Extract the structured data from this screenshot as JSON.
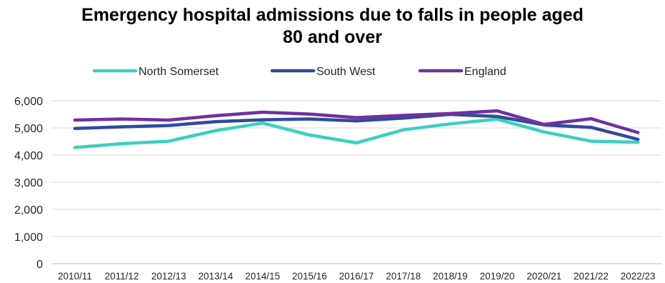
{
  "chart_data": {
    "type": "line",
    "title": [
      "Emergency hospital admissions due to falls in people aged",
      "80 and over"
    ],
    "categories": [
      "2010/11",
      "2011/12",
      "2012/13",
      "2013/14",
      "2014/15",
      "2015/16",
      "2016/17",
      "2017/18",
      "2018/19",
      "2019/20",
      "2020/21",
      "2021/22",
      "2022/23"
    ],
    "ylim": [
      0,
      6000
    ],
    "yticks": [
      "0",
      "1,000",
      "2,000",
      "3,000",
      "4,000",
      "5,000",
      "6,000"
    ],
    "ytick_values": [
      0,
      1000,
      2000,
      3000,
      4000,
      5000,
      6000
    ],
    "grid": true,
    "legend_position": "top",
    "series": [
      {
        "name": "North Somerset",
        "color": "#3ccfc0",
        "values": [
          4280,
          4420,
          4510,
          4900,
          5180,
          4740,
          4450,
          4930,
          5150,
          5320,
          4850,
          4510,
          4470
        ]
      },
      {
        "name": "South West",
        "color": "#2f4c9c",
        "values": [
          4980,
          5040,
          5090,
          5230,
          5300,
          5330,
          5260,
          5360,
          5500,
          5420,
          5110,
          5020,
          4580
        ]
      },
      {
        "name": "England",
        "color": "#7030a0",
        "values": [
          5290,
          5330,
          5290,
          5450,
          5580,
          5510,
          5380,
          5460,
          5530,
          5630,
          5130,
          5340,
          4830
        ]
      }
    ]
  }
}
